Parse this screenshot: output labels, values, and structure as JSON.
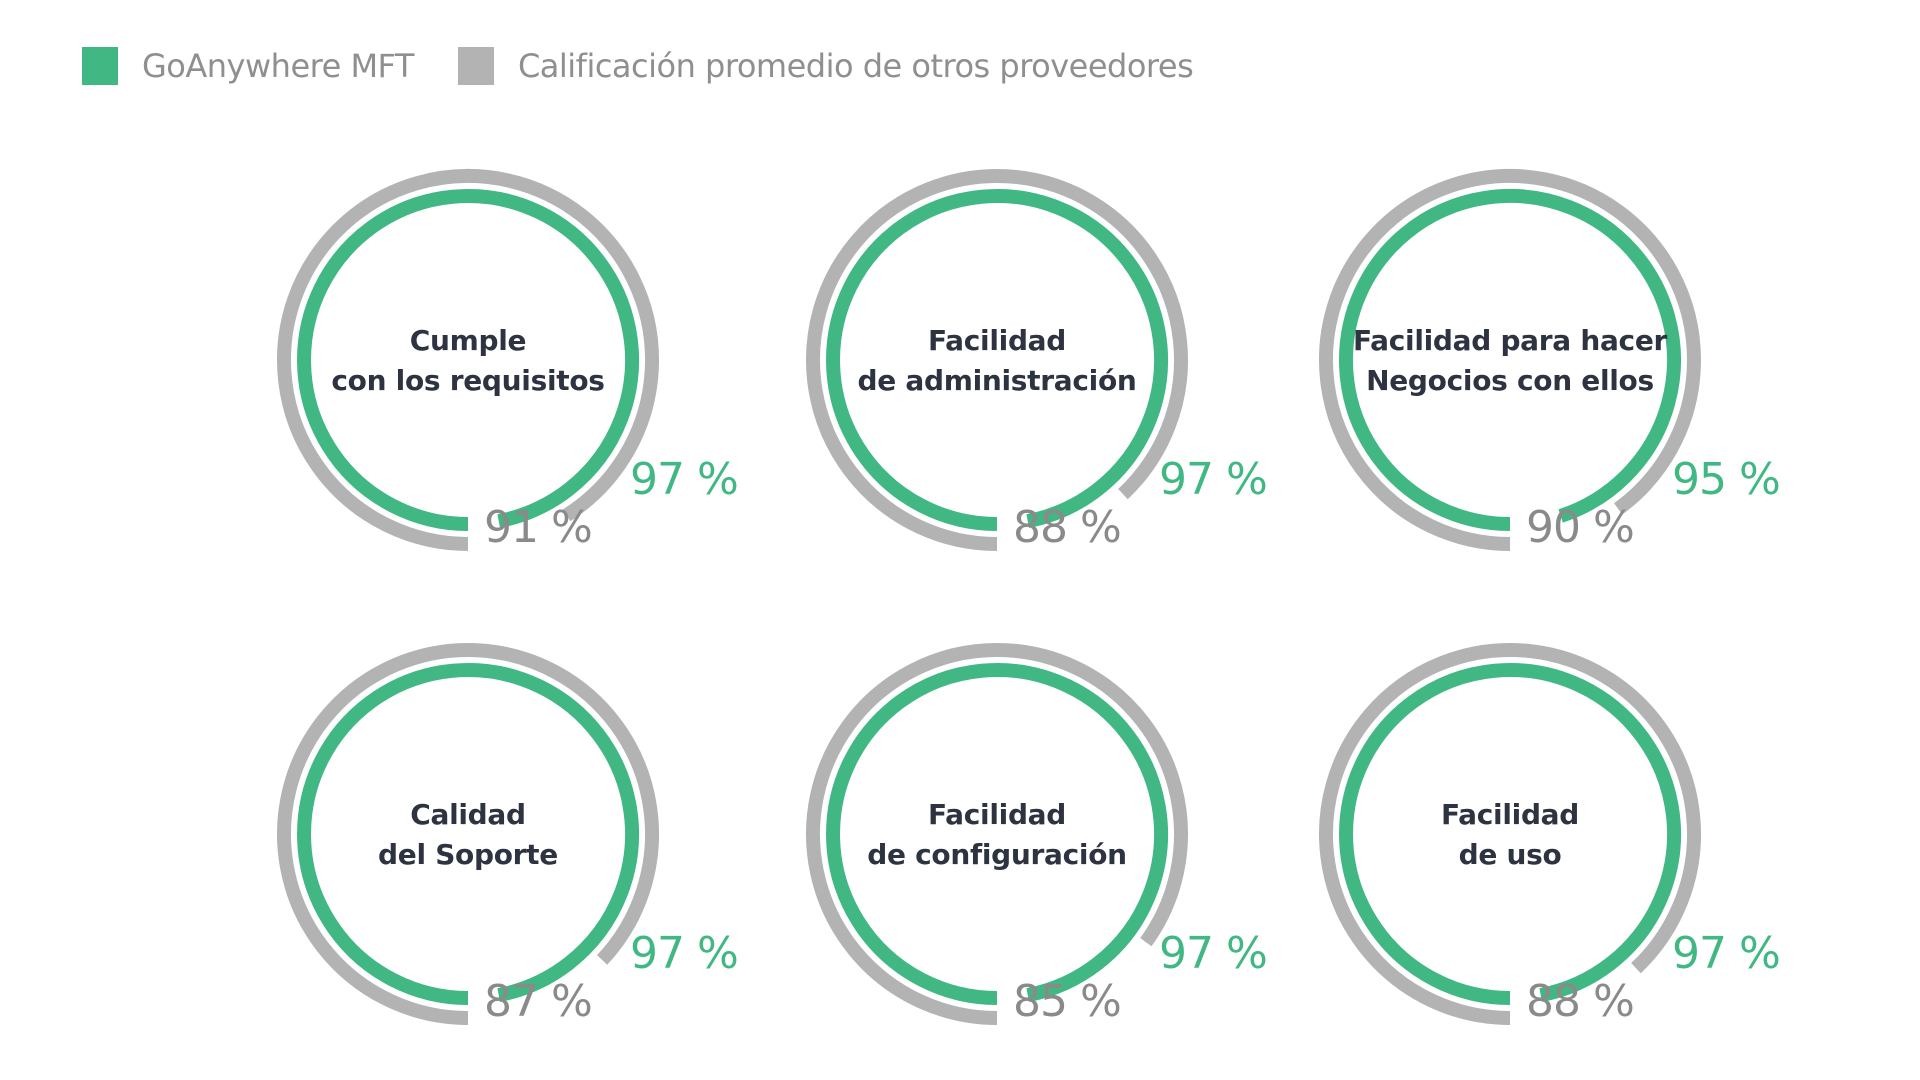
{
  "legend": [
    {
      "name": "GoAnywhere MFT",
      "color": "#41b883"
    },
    {
      "name": "Calificación promedio de otros proveedores",
      "color": "#b3b3b3"
    }
  ],
  "chart_data": {
    "type": "radial-bar",
    "series": [
      {
        "name": "GoAnywhere MFT",
        "color": "#41b883"
      },
      {
        "name": "Calificación promedio de otros proveedores",
        "color": "#b3b3b3"
      }
    ],
    "items": [
      {
        "title_lines": [
          "Cumple",
          "con los requisitos"
        ],
        "goanywhere": 97,
        "goanywhere_label": "97 %",
        "others": 91,
        "others_label": "91 %"
      },
      {
        "title_lines": [
          "Facilidad",
          "de administración"
        ],
        "goanywhere": 97,
        "goanywhere_label": "97 %",
        "others": 88,
        "others_label": "88 %"
      },
      {
        "title_lines": [
          "Facilidad para hacer",
          "Negocios con ellos"
        ],
        "goanywhere": 95,
        "goanywhere_label": "95 %",
        "others": 90,
        "others_label": "90 %"
      },
      {
        "title_lines": [
          "Calidad",
          "del Soporte"
        ],
        "goanywhere": 97,
        "goanywhere_label": "97 %",
        "others": 87,
        "others_label": "87 %"
      },
      {
        "title_lines": [
          "Facilidad",
          "de configuración"
        ],
        "goanywhere": 97,
        "goanywhere_label": "97 %",
        "others": 85,
        "others_label": "85 %"
      },
      {
        "title_lines": [
          "Facilidad",
          "de uso"
        ],
        "goanywhere": 97,
        "goanywhere_label": "97 %",
        "others": 88,
        "others_label": "88 %"
      }
    ],
    "value_range": [
      0,
      100
    ],
    "grid": false,
    "legend_position": "top-left"
  }
}
